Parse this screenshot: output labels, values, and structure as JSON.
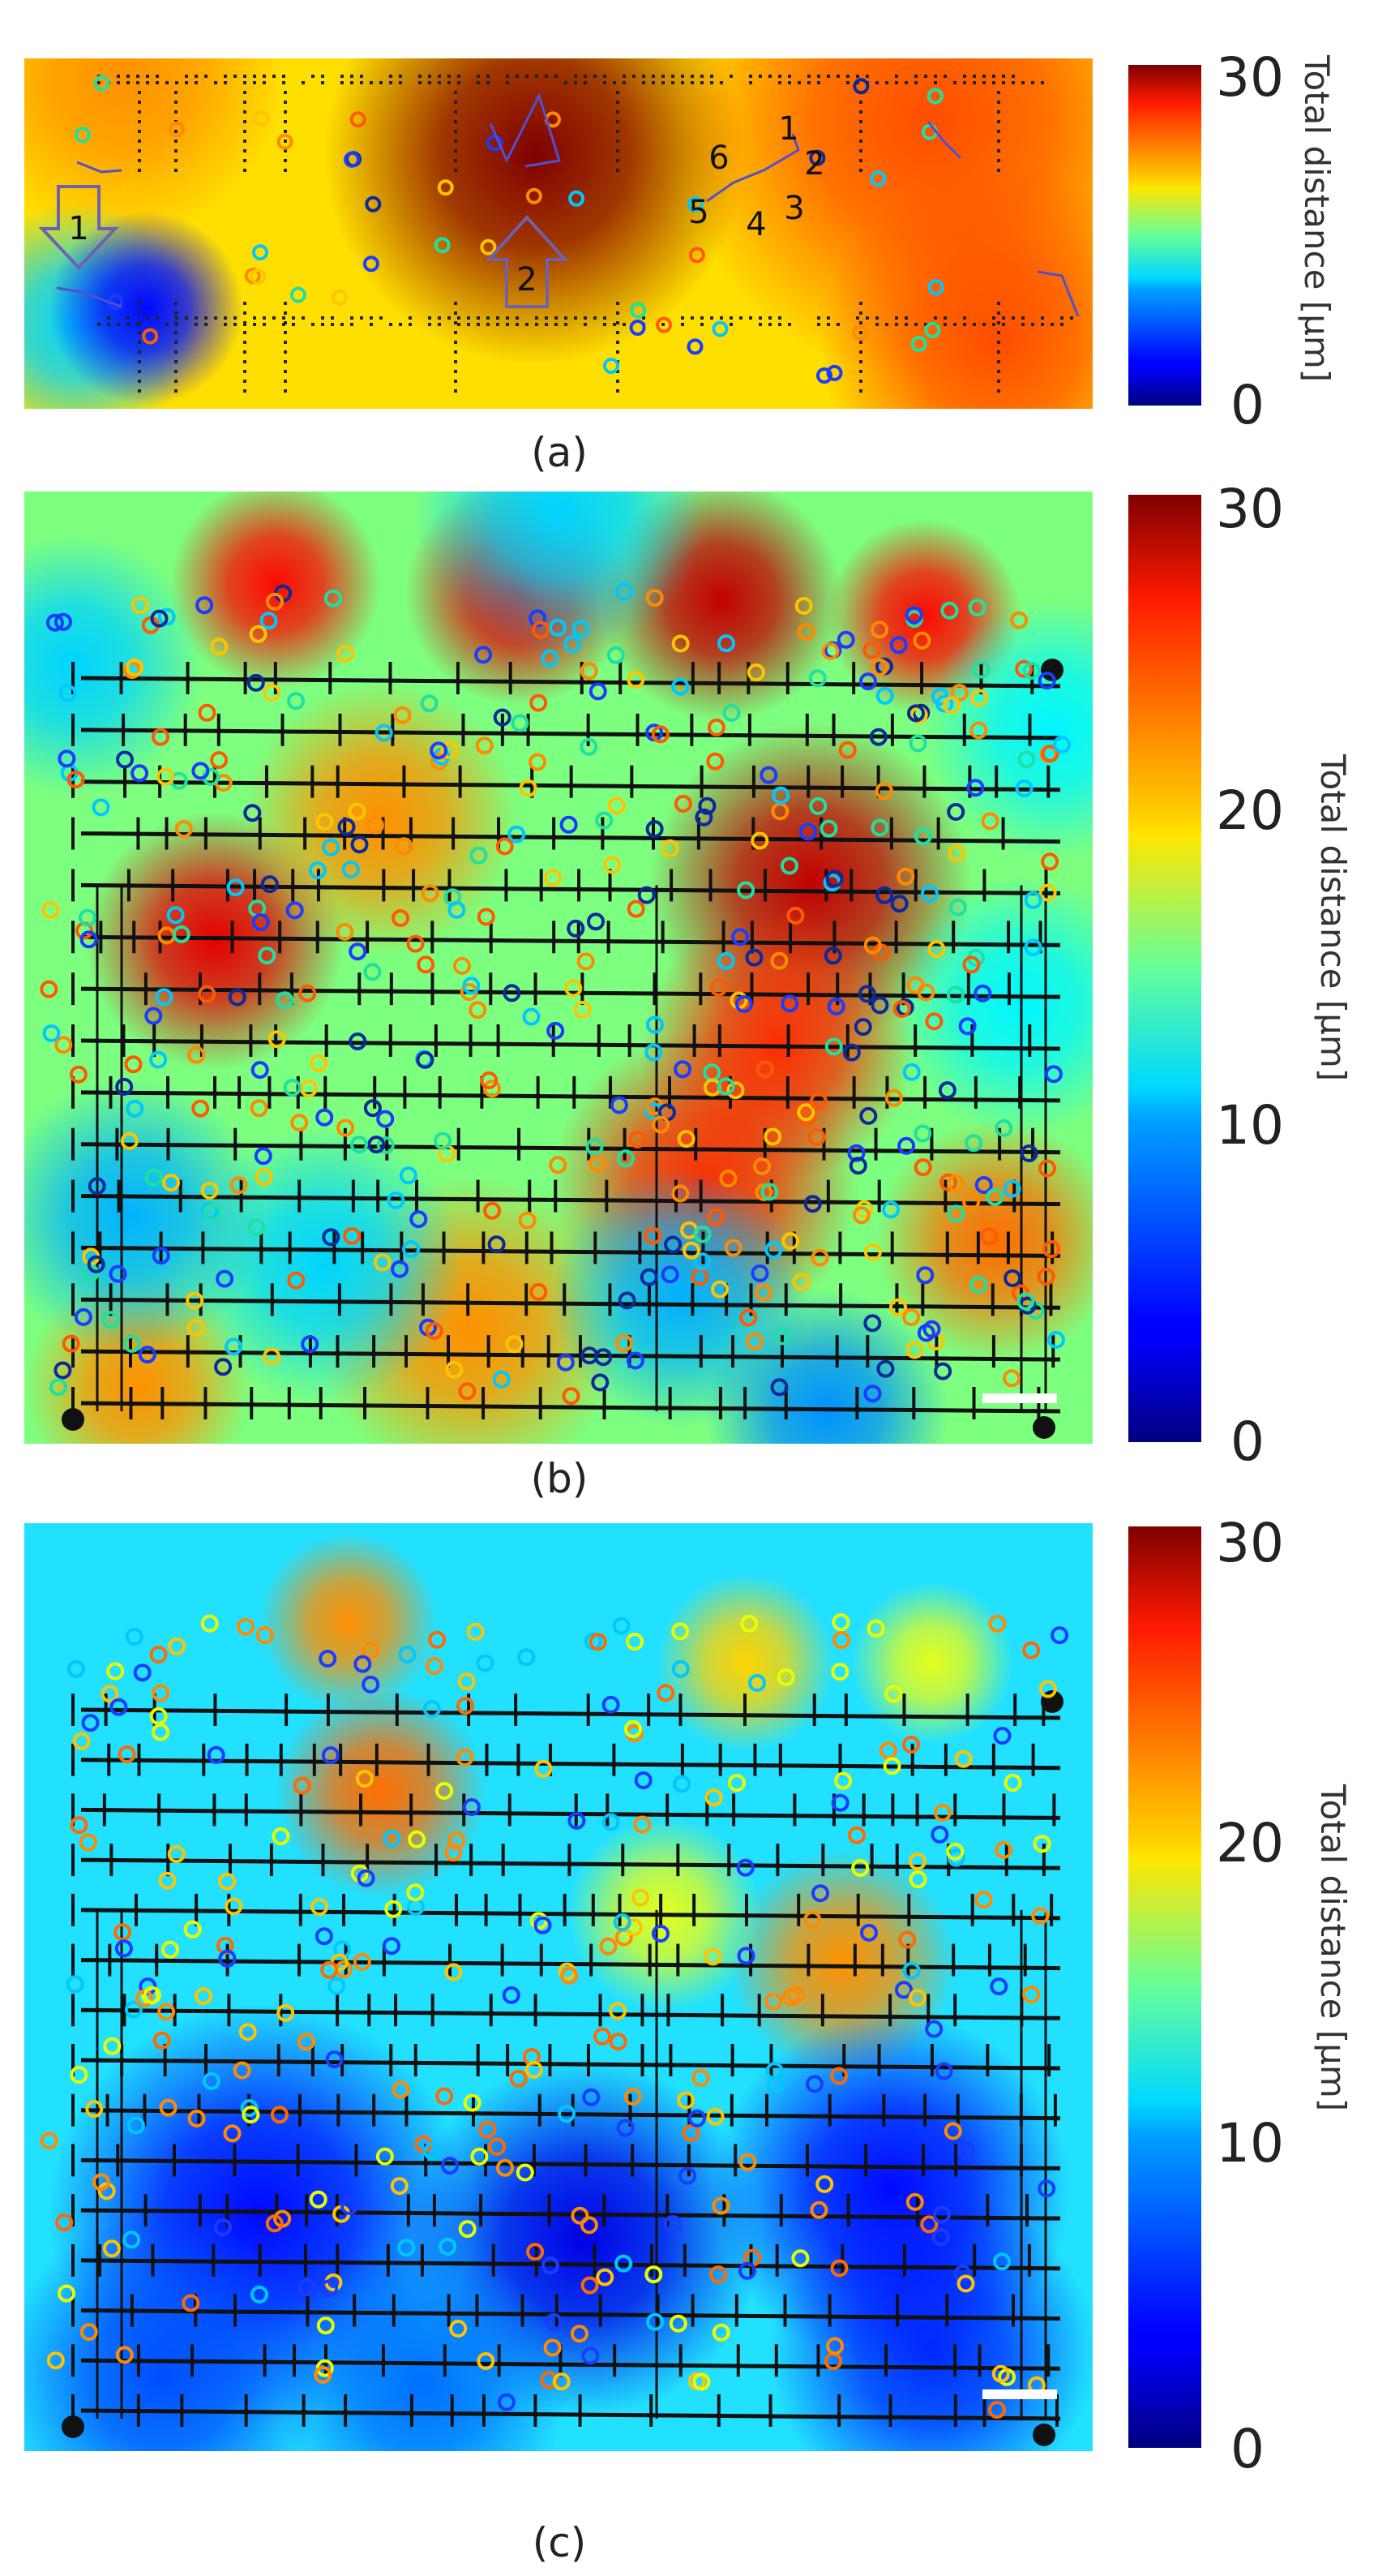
{
  "chart_data": [
    {
      "panel": "(a)",
      "type": "heatmap",
      "colorbar": {
        "title": "Total distance [µm]",
        "min": 0,
        "max": 30,
        "ticks": [
          0,
          30
        ],
        "colormap": "jet"
      },
      "annotations": {
        "arrows": [
          "1",
          "2"
        ],
        "numbers": [
          "1",
          "2",
          "3",
          "4",
          "5",
          "6"
        ]
      },
      "hotspots": [
        {
          "value": 30
        },
        {
          "value": 22
        },
        {
          "value": 24
        },
        {
          "value": 24
        }
      ],
      "coldspots": [
        {
          "value": 10
        },
        {
          "value": 4
        }
      ],
      "background_value": 17,
      "marker_count": 44
    },
    {
      "panel": "(b)",
      "type": "heatmap",
      "colorbar": {
        "title": "Total distance [µm]",
        "min": 0,
        "max": 30,
        "ticks": [
          0,
          10,
          20,
          30
        ],
        "colormap": "jet"
      },
      "scale_bar": true,
      "hotspots": [
        {
          "value": 26
        },
        {
          "value": 27
        },
        {
          "value": 28
        },
        {
          "value": 26
        },
        {
          "value": 28
        },
        {
          "value": 27
        },
        {
          "value": 22
        },
        {
          "value": 25
        },
        {
          "value": 25
        },
        {
          "value": 22
        },
        {
          "value": 23
        },
        {
          "value": 22
        }
      ],
      "coldspots": [
        {
          "value": 10
        },
        {
          "value": 10
        },
        {
          "value": 9
        },
        {
          "value": 8
        },
        {
          "value": 10
        },
        {
          "value": 9
        },
        {
          "value": 11
        },
        {
          "value": 11
        }
      ],
      "background_value": 15,
      "grid_rows": 15,
      "marker_count": 420
    },
    {
      "panel": "(c)",
      "type": "heatmap",
      "colorbar": {
        "title": "Total distance [µm]",
        "min": 0,
        "max": 30,
        "ticks": [
          0,
          10,
          20,
          30
        ],
        "colormap": "jet"
      },
      "scale_bar": true,
      "hotspots": [
        {
          "value": 23
        },
        {
          "value": 22
        },
        {
          "value": 20
        },
        {
          "value": 22
        },
        {
          "value": 18
        },
        {
          "value": 18
        }
      ],
      "coldspots": [
        {
          "value": 4
        },
        {
          "value": 3
        },
        {
          "value": 5
        },
        {
          "value": 4
        },
        {
          "value": 6
        },
        {
          "value": 7
        }
      ],
      "background_value": 11,
      "grid_rows": 15,
      "marker_count": 280
    }
  ]
}
